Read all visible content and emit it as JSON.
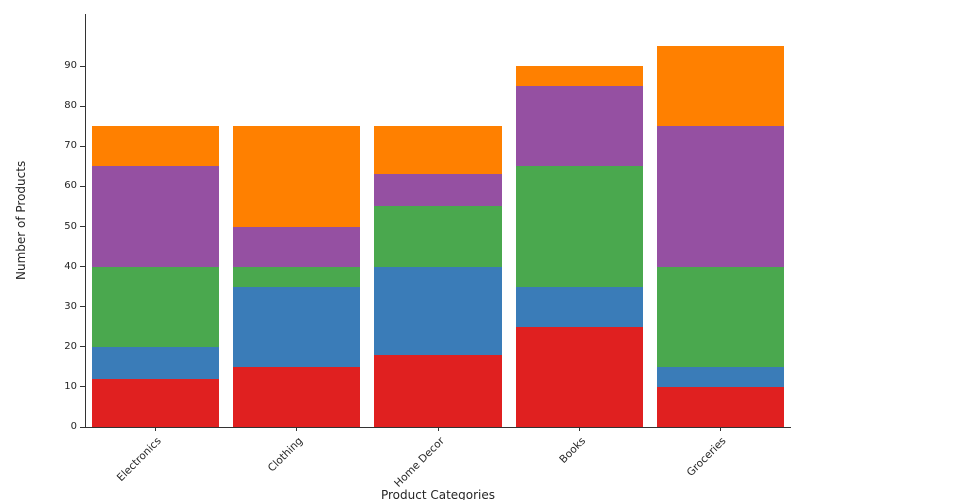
{
  "chart_data": {
    "type": "bar",
    "stacked": true,
    "title": "",
    "xlabel": "Product Categories",
    "ylabel": "Number of Products",
    "categories": [
      "Electronics",
      "Clothing",
      "Home Decor",
      "Books",
      "Groceries"
    ],
    "series": [
      {
        "name": "segment-red",
        "color": "#e02020",
        "values": [
          12,
          15,
          18,
          25,
          10
        ]
      },
      {
        "name": "segment-blue",
        "color": "#3a7cb8",
        "values": [
          8,
          20,
          22,
          10,
          5
        ]
      },
      {
        "name": "segment-green",
        "color": "#4aa84e",
        "values": [
          20,
          5,
          15,
          30,
          25
        ]
      },
      {
        "name": "segment-purple",
        "color": "#9550a2",
        "values": [
          25,
          10,
          8,
          20,
          35
        ]
      },
      {
        "name": "segment-orange",
        "color": "#ff8000",
        "values": [
          10,
          25,
          12,
          5,
          20
        ]
      }
    ],
    "totals": [
      75,
      75,
      75,
      90,
      95
    ],
    "yticks": [
      0,
      10,
      20,
      30,
      40,
      50,
      60,
      70,
      80,
      90
    ],
    "ylim": [
      0,
      103
    ],
    "grid": false,
    "legend": "none",
    "bar_gap_fraction": 0.1,
    "x_tick_rotation_deg": 45
  }
}
